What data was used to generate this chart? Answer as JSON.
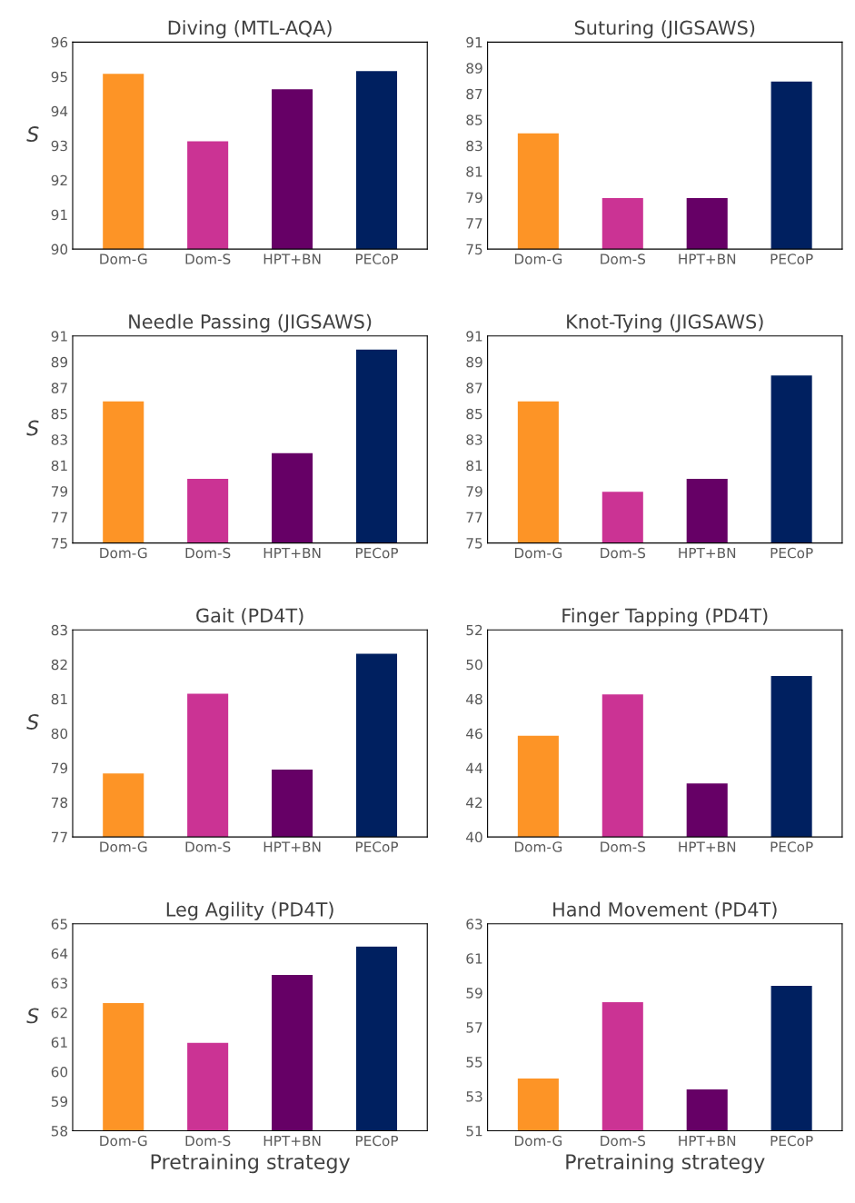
{
  "chart_data": [
    {
      "type": "bar",
      "title": "Diving (MTL-AQA)",
      "ylabel": "S",
      "categories": [
        "Dom-G",
        "Dom-S",
        "HPT+BN",
        "PECoP"
      ],
      "values": [
        95.1,
        93.14,
        94.65,
        95.18
      ],
      "colors": [
        "#fd9426",
        "#cb3394",
        "#660066",
        "#002060"
      ],
      "ylim": [
        90,
        96
      ],
      "yticks": [
        90,
        91,
        92,
        93,
        94,
        95,
        96
      ],
      "grid": false,
      "legend": false
    },
    {
      "type": "bar",
      "title": "Suturing (JIGSAWS)",
      "categories": [
        "Dom-G",
        "Dom-S",
        "HPT+BN",
        "PECoP"
      ],
      "values": [
        84,
        79,
        79,
        88
      ],
      "colors": [
        "#fd9426",
        "#cb3394",
        "#660066",
        "#002060"
      ],
      "ylim": [
        75,
        91
      ],
      "yticks": [
        75,
        77,
        79,
        81,
        83,
        85,
        87,
        89,
        91
      ],
      "grid": false,
      "legend": false
    },
    {
      "type": "bar",
      "title": "Needle Passing (JIGSAWS)",
      "ylabel": "S",
      "categories": [
        "Dom-G",
        "Dom-S",
        "HPT+BN",
        "PECoP"
      ],
      "values": [
        86,
        80,
        82,
        90
      ],
      "colors": [
        "#fd9426",
        "#cb3394",
        "#660066",
        "#002060"
      ],
      "ylim": [
        75,
        91
      ],
      "yticks": [
        75,
        77,
        79,
        81,
        83,
        85,
        87,
        89,
        91
      ],
      "grid": false,
      "legend": false
    },
    {
      "type": "bar",
      "title": "Knot-Tying (JIGSAWS)",
      "categories": [
        "Dom-G",
        "Dom-S",
        "HPT+BN",
        "PECoP"
      ],
      "values": [
        86,
        79,
        80,
        88
      ],
      "colors": [
        "#fd9426",
        "#cb3394",
        "#660066",
        "#002060"
      ],
      "ylim": [
        75,
        91
      ],
      "yticks": [
        75,
        77,
        79,
        81,
        83,
        85,
        87,
        89,
        91
      ],
      "grid": false,
      "legend": false
    },
    {
      "type": "bar",
      "title": "Gait (PD4T)",
      "ylabel": "S",
      "categories": [
        "Dom-G",
        "Dom-S",
        "HPT+BN",
        "PECoP"
      ],
      "values": [
        78.86,
        81.17,
        78.97,
        82.33
      ],
      "colors": [
        "#fd9426",
        "#cb3394",
        "#660066",
        "#002060"
      ],
      "ylim": [
        77,
        83
      ],
      "yticks": [
        77,
        78,
        79,
        80,
        81,
        82,
        83
      ],
      "grid": false,
      "legend": false
    },
    {
      "type": "bar",
      "title": "Finger Tapping (PD4T)",
      "categories": [
        "Dom-G",
        "Dom-S",
        "HPT+BN",
        "PECoP"
      ],
      "values": [
        45.9,
        48.3,
        43.14,
        49.37
      ],
      "colors": [
        "#fd9426",
        "#cb3394",
        "#660066",
        "#002060"
      ],
      "ylim": [
        40,
        52
      ],
      "yticks": [
        40,
        42,
        44,
        46,
        48,
        50,
        52
      ],
      "grid": false,
      "legend": false
    },
    {
      "type": "bar",
      "title": "Leg Agility (PD4T)",
      "ylabel": "S",
      "xlabel": "Pretraining strategy",
      "categories": [
        "Dom-G",
        "Dom-S",
        "HPT+BN",
        "PECoP"
      ],
      "values": [
        62.34,
        61.0,
        63.29,
        64.25
      ],
      "colors": [
        "#fd9426",
        "#cb3394",
        "#660066",
        "#002060"
      ],
      "ylim": [
        58,
        65
      ],
      "yticks": [
        58,
        59,
        60,
        61,
        62,
        63,
        64,
        65
      ],
      "grid": false,
      "legend": false
    },
    {
      "type": "bar",
      "title": "Hand Movement (PD4T)",
      "xlabel": "Pretraining strategy",
      "categories": [
        "Dom-G",
        "Dom-S",
        "HPT+BN",
        "PECoP"
      ],
      "values": [
        54.07,
        58.5,
        53.44,
        59.44
      ],
      "colors": [
        "#fd9426",
        "#cb3394",
        "#660066",
        "#002060"
      ],
      "ylim": [
        51,
        63
      ],
      "yticks": [
        51,
        53,
        55,
        57,
        59,
        61,
        63
      ],
      "grid": false,
      "legend": false
    }
  ]
}
